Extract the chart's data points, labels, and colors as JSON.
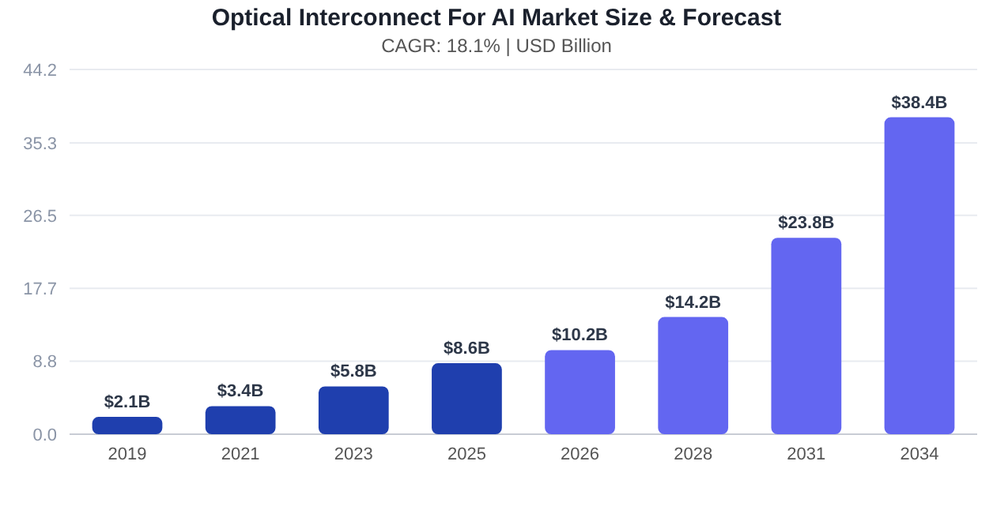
{
  "chart_data": {
    "type": "bar",
    "title": "Optical Interconnect For AI Market Size & Forecast",
    "subtitle": "CAGR: 18.1% | USD Billion",
    "categories": [
      "2019",
      "2021",
      "2023",
      "2025",
      "2026",
      "2028",
      "2031",
      "2034"
    ],
    "values": [
      2.1,
      3.4,
      5.8,
      8.6,
      10.2,
      14.2,
      23.8,
      38.4
    ],
    "colors": [
      "#1f3fae",
      "#1f3fae",
      "#1f3fae",
      "#1f3fae",
      "#6366f1",
      "#6366f1",
      "#6366f1",
      "#6366f1"
    ],
    "value_labels": [
      "$2.1B",
      "$3.4B",
      "$5.8B",
      "$8.6B",
      "$10.2B",
      "$14.2B",
      "$23.8B",
      "$38.4B"
    ],
    "ylim": [
      0,
      44.2
    ],
    "yticks": [
      {
        "value": 0,
        "label": "0.0"
      },
      {
        "value": 8.84,
        "label": "8.8"
      },
      {
        "value": 17.68,
        "label": "17.7"
      },
      {
        "value": 26.52,
        "label": "26.5"
      },
      35.3,
      44.2
    ],
    "grid": "y"
  }
}
